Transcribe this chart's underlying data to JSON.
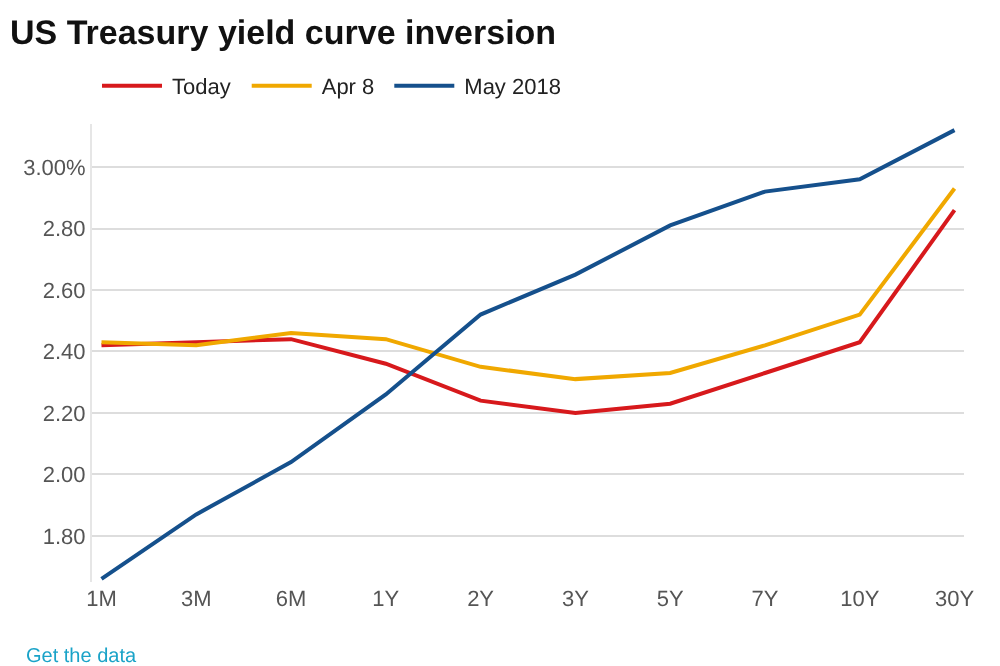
{
  "chart_data": {
    "type": "line",
    "title": "US Treasury yield curve inversion",
    "categories": [
      "1M",
      "3M",
      "6M",
      "1Y",
      "2Y",
      "3Y",
      "5Y",
      "7Y",
      "10Y",
      "30Y"
    ],
    "series": [
      {
        "name": "Today",
        "color": "#d7191c",
        "values": [
          2.42,
          2.43,
          2.44,
          2.36,
          2.24,
          2.2,
          2.23,
          2.33,
          2.43,
          2.86
        ]
      },
      {
        "name": "Apr 8",
        "color": "#f0a800",
        "values": [
          2.43,
          2.42,
          2.46,
          2.44,
          2.35,
          2.31,
          2.33,
          2.42,
          2.52,
          2.93
        ]
      },
      {
        "name": "May 2018",
        "color": "#15508c",
        "values": [
          1.66,
          1.87,
          2.04,
          2.26,
          2.52,
          2.65,
          2.81,
          2.92,
          2.96,
          3.12
        ]
      }
    ],
    "ylim": [
      1.65,
      3.14
    ],
    "yticks": [
      {
        "value": 1.8,
        "label": "1.80"
      },
      {
        "value": 2.0,
        "label": "2.00"
      },
      {
        "value": 2.2,
        "label": "2.20"
      },
      {
        "value": 2.4,
        "label": "2.40"
      },
      {
        "value": 2.6,
        "label": "2.60"
      },
      {
        "value": 2.8,
        "label": "2.80"
      },
      {
        "value": 3.0,
        "label": "3.00%"
      }
    ],
    "grid": "y",
    "legend": "top left",
    "marker": "none",
    "line_style": "solid",
    "annotations": [
      "Get the data"
    ]
  }
}
